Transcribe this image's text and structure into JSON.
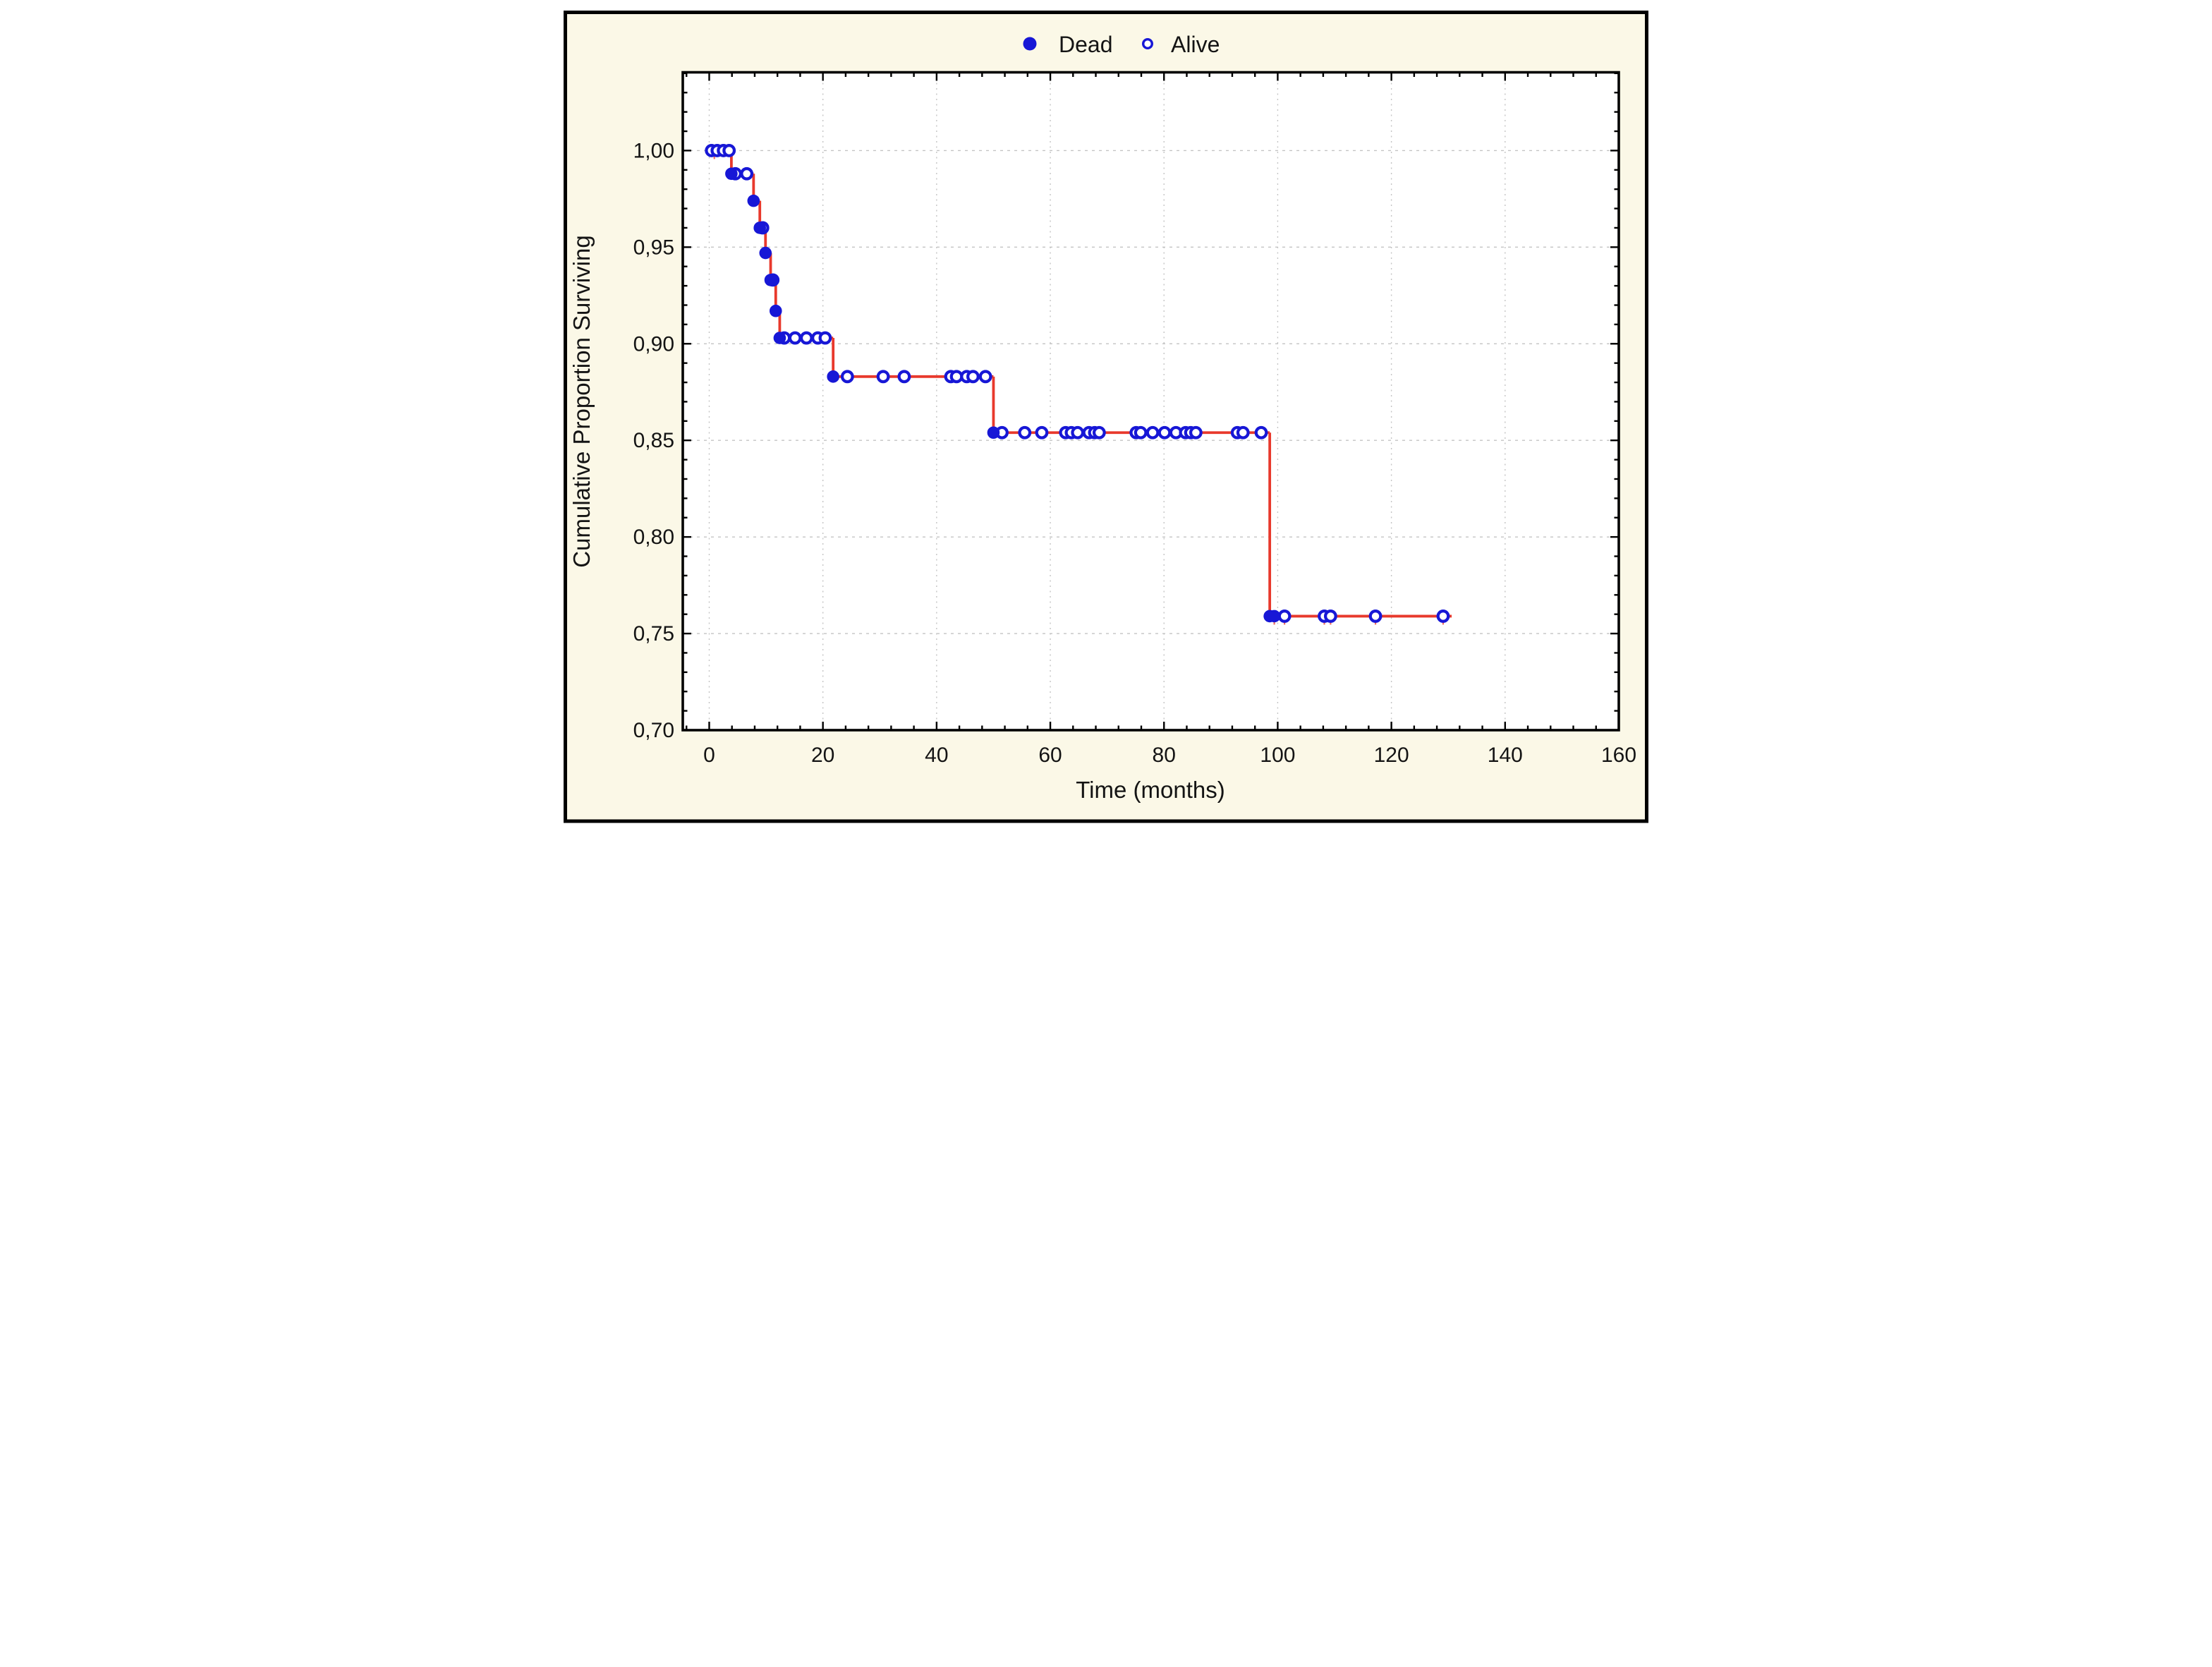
{
  "figure": {
    "background_color": "#FBF8E7",
    "outer_frame_color": "#000000",
    "plot_background": "#FFFFFF"
  },
  "chart_data": {
    "type": "line",
    "subtype": "kaplan-meier-step",
    "title": "",
    "xlabel": "Time (months)",
    "ylabel": "Cumulative Proportion Surviving",
    "legend": [
      {
        "label": "Dead",
        "marker": "filled-circle"
      },
      {
        "label": "Alive",
        "marker": "open-circle"
      }
    ],
    "legend_position": "top-center",
    "grid": "dotted-major",
    "xlim": [
      -4.65,
      160
    ],
    "ylim": [
      0.7,
      1.0405
    ],
    "x_ticks": {
      "major": [
        0,
        20,
        40,
        60,
        80,
        100,
        120,
        140,
        160
      ],
      "labels": [
        "0",
        "20",
        "40",
        "60",
        "80",
        "100",
        "120",
        "140",
        "160"
      ],
      "minor_step": 4
    },
    "y_ticks": {
      "major": [
        0.7,
        0.75,
        0.8,
        0.85,
        0.9,
        0.95,
        1.0
      ],
      "labels": [
        "0,70",
        "0,75",
        "0,80",
        "0,85",
        "0,90",
        "0,95",
        "1,00"
      ],
      "minor_step": 0.01
    },
    "survival_steps": [
      {
        "until": 3.9,
        "s": 1.0
      },
      {
        "until": 7.8,
        "s": 0.988
      },
      {
        "until": 8.9,
        "s": 0.974
      },
      {
        "until": 9.9,
        "s": 0.96
      },
      {
        "until": 10.8,
        "s": 0.947
      },
      {
        "until": 11.7,
        "s": 0.933
      },
      {
        "until": 12.4,
        "s": 0.917
      },
      {
        "until": 21.8,
        "s": 0.903
      },
      {
        "until": 50.0,
        "s": 0.883
      },
      {
        "until": 98.6,
        "s": 0.854
      },
      {
        "until": 130.6,
        "s": 0.759
      }
    ],
    "deaths": [
      [
        3.9,
        0.988
      ],
      [
        7.8,
        0.974
      ],
      [
        8.9,
        0.96
      ],
      [
        9.9,
        0.947
      ],
      [
        10.8,
        0.933
      ],
      [
        11.7,
        0.917
      ],
      [
        12.4,
        0.903
      ],
      [
        21.8,
        0.883
      ],
      [
        50,
        0.854
      ],
      [
        98.6,
        0.759
      ],
      [
        99.4,
        0.759
      ]
    ],
    "censored": [
      [
        0.4,
        1.0
      ],
      [
        1.4,
        1.0
      ],
      [
        2.5,
        1.0
      ],
      [
        3.5,
        1.0
      ],
      [
        4.6,
        0.988
      ],
      [
        6.6,
        0.988
      ],
      [
        9.4,
        0.96
      ],
      [
        11.2,
        0.933
      ],
      [
        13.2,
        0.903
      ],
      [
        15.1,
        0.903
      ],
      [
        17.1,
        0.903
      ],
      [
        19.1,
        0.903
      ],
      [
        20.4,
        0.903
      ],
      [
        24.3,
        0.883
      ],
      [
        30.6,
        0.883
      ],
      [
        34.3,
        0.883
      ],
      [
        42.5,
        0.883
      ],
      [
        43.5,
        0.883
      ],
      [
        45.3,
        0.883
      ],
      [
        46.4,
        0.883
      ],
      [
        48.6,
        0.883
      ],
      [
        51.5,
        0.854
      ],
      [
        55.5,
        0.854
      ],
      [
        58.5,
        0.854
      ],
      [
        62.7,
        0.854
      ],
      [
        63.7,
        0.854
      ],
      [
        64.8,
        0.854
      ],
      [
        66.8,
        0.854
      ],
      [
        67.8,
        0.854
      ],
      [
        68.6,
        0.854
      ],
      [
        75.1,
        0.854
      ],
      [
        75.9,
        0.854
      ],
      [
        78.0,
        0.854
      ],
      [
        80.1,
        0.854
      ],
      [
        82.1,
        0.854
      ],
      [
        83.8,
        0.854
      ],
      [
        84.7,
        0.854
      ],
      [
        85.6,
        0.854
      ],
      [
        92.9,
        0.854
      ],
      [
        93.9,
        0.854
      ],
      [
        97.1,
        0.854
      ],
      [
        101.2,
        0.759
      ],
      [
        108.2,
        0.759
      ],
      [
        109.3,
        0.759
      ],
      [
        117.2,
        0.759
      ],
      [
        129.1,
        0.759
      ]
    ],
    "censor_ticks": [
      [
        0.9,
        1.0
      ],
      [
        99.4,
        0.759
      ],
      [
        101.2,
        0.759
      ],
      [
        108.2,
        0.759
      ],
      [
        109.3,
        0.759
      ],
      [
        117.2,
        0.759
      ],
      [
        129.1,
        0.759
      ]
    ],
    "colors": {
      "curve": "#E8392C",
      "marker": "#1717D6",
      "grid": "#C4C4C4",
      "axis": "#000000",
      "text": "#141414"
    }
  }
}
